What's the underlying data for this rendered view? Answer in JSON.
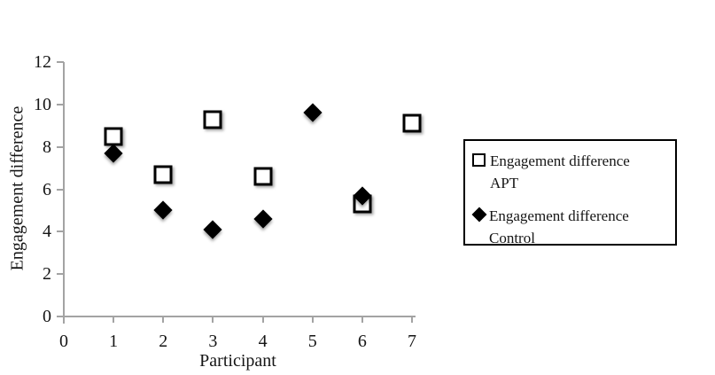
{
  "chart_data": {
    "type": "scatter",
    "title": "",
    "xlabel": "Participant",
    "ylabel": "Engagement difference",
    "xlim": [
      0,
      7
    ],
    "ylim": [
      0,
      12
    ],
    "x_ticks": [
      0,
      1,
      2,
      3,
      4,
      5,
      6,
      7
    ],
    "y_ticks": [
      0,
      2,
      4,
      6,
      8,
      10,
      12
    ],
    "grid": false,
    "legend_position": "right",
    "axis_color": "#a3a3a3",
    "marker_colors": {
      "apt_fill": "#ffffff",
      "apt_border": "#000000",
      "control_fill": "#000000"
    },
    "series": [
      {
        "name": "Engagement difference APT",
        "marker": "open-square",
        "points": [
          {
            "x": 1,
            "y": 8.5
          },
          {
            "x": 2,
            "y": 6.7
          },
          {
            "x": 3,
            "y": 9.3
          },
          {
            "x": 4,
            "y": 6.6
          },
          {
            "x": 6,
            "y": 5.3
          },
          {
            "x": 7,
            "y": 9.1
          }
        ]
      },
      {
        "name": "Engagement difference Control",
        "marker": "filled-diamond",
        "points": [
          {
            "x": 1,
            "y": 7.7
          },
          {
            "x": 2,
            "y": 5.0
          },
          {
            "x": 3,
            "y": 4.1
          },
          {
            "x": 4,
            "y": 4.6
          },
          {
            "x": 5,
            "y": 9.6
          },
          {
            "x": 6,
            "y": 5.7
          }
        ]
      }
    ]
  }
}
